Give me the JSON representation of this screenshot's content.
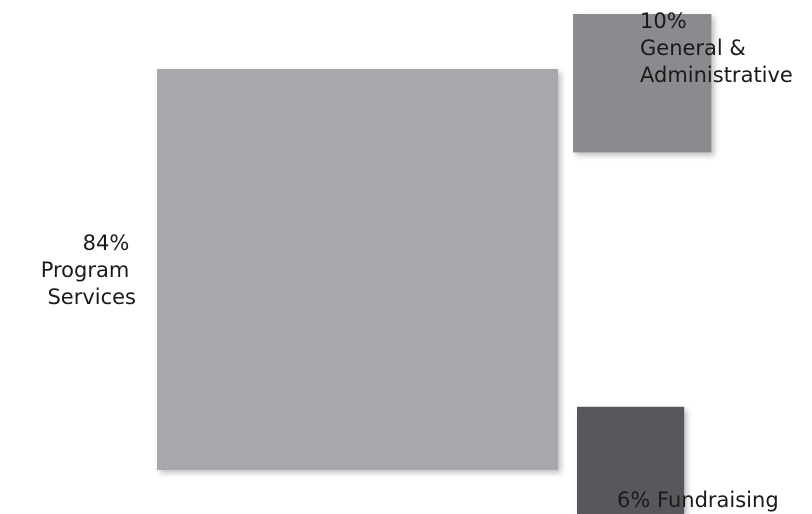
{
  "chart_data": {
    "type": "proportional-area",
    "units": "%",
    "categories": [
      "Program Services",
      "General & Administrative",
      "Fundraising"
    ],
    "values": [
      84,
      10,
      6
    ],
    "colors": [
      "#a7a8ab",
      "#8a8b8e",
      "#58595b"
    ],
    "labels": [
      {
        "value_text": "84%",
        "name_lines": [
          "Program",
          "Services"
        ]
      },
      {
        "value_text": "10%",
        "name_lines": [
          "General &",
          "Administrative"
        ]
      },
      {
        "value_text": "6%",
        "name_lines": [
          "Fundraising"
        ]
      }
    ]
  }
}
